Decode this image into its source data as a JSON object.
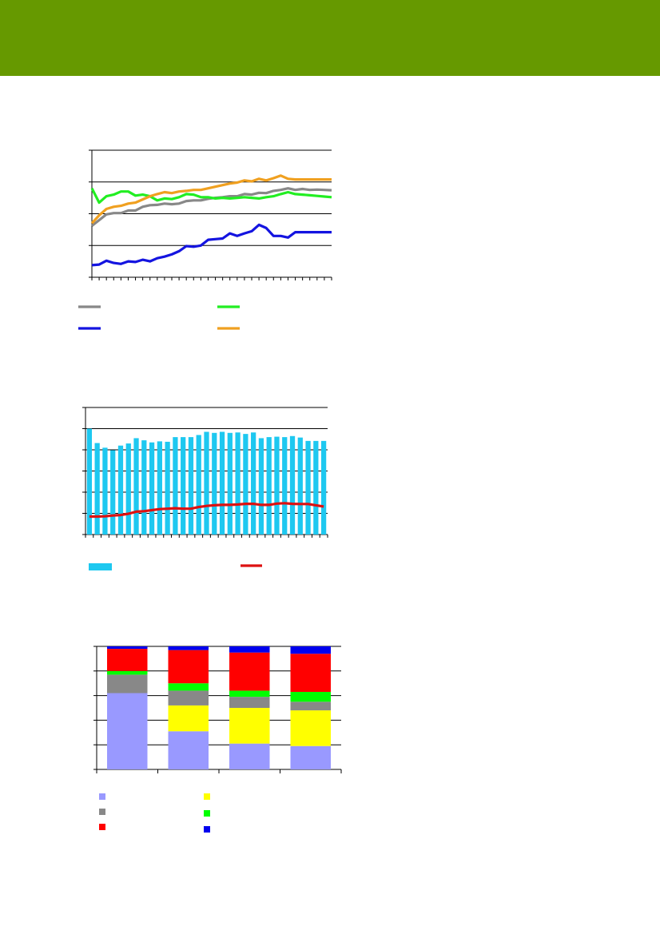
{
  "header": {
    "band_color": "#669900"
  },
  "chart_data": [
    {
      "type": "line",
      "grid": true,
      "legend_position": "bottom",
      "ylim": [
        0,
        4
      ],
      "n_points": 34,
      "series": [
        {
          "color": "#888888",
          "values": [
            1.62,
            1.8,
            1.98,
            2.02,
            2.02,
            2.1,
            2.1,
            2.22,
            2.27,
            2.28,
            2.32,
            2.3,
            2.32,
            2.4,
            2.42,
            2.42,
            2.47,
            2.5,
            2.52,
            2.55,
            2.55,
            2.62,
            2.6,
            2.66,
            2.65,
            2.72,
            2.75,
            2.8,
            2.75,
            2.78,
            2.75,
            2.76,
            2.75,
            2.74
          ]
        },
        {
          "color": "#22ee22",
          "values": [
            2.8,
            2.35,
            2.55,
            2.6,
            2.7,
            2.7,
            2.57,
            2.6,
            2.55,
            2.42,
            2.48,
            2.46,
            2.52,
            2.62,
            2.6,
            2.52,
            2.52,
            2.48,
            2.5,
            2.48,
            2.5,
            2.52,
            2.5,
            2.48,
            2.52,
            2.55,
            2.62,
            2.68,
            2.62,
            2.6,
            2.58,
            2.56,
            2.54,
            2.52
          ]
        },
        {
          "color": "#1414e0",
          "values": [
            0.38,
            0.4,
            0.52,
            0.45,
            0.42,
            0.5,
            0.48,
            0.55,
            0.5,
            0.6,
            0.65,
            0.72,
            0.82,
            0.98,
            0.96,
            1.0,
            1.18,
            1.2,
            1.22,
            1.38,
            1.3,
            1.38,
            1.45,
            1.65,
            1.55,
            1.3,
            1.3,
            1.25,
            1.42,
            1.42,
            1.42,
            1.42,
            1.42,
            1.42
          ]
        },
        {
          "color": "#f0a020",
          "values": [
            1.7,
            1.95,
            2.15,
            2.22,
            2.25,
            2.32,
            2.35,
            2.45,
            2.55,
            2.62,
            2.68,
            2.65,
            2.7,
            2.72,
            2.75,
            2.75,
            2.8,
            2.85,
            2.9,
            2.95,
            2.98,
            3.05,
            3.02,
            3.1,
            3.05,
            3.12,
            3.2,
            3.1,
            3.08,
            3.08,
            3.08,
            3.08,
            3.08,
            3.08
          ]
        }
      ]
    },
    {
      "type": "bar",
      "grid": true,
      "legend_position": "bottom",
      "ylim": [
        0,
        6
      ],
      "n_bars": 31,
      "bar_color": "#1ec8f0",
      "bar_values": [
        5.0,
        4.32,
        4.1,
        3.98,
        4.2,
        4.3,
        4.55,
        4.45,
        4.35,
        4.4,
        4.38,
        4.6,
        4.6,
        4.6,
        4.7,
        4.85,
        4.8,
        4.85,
        4.8,
        4.82,
        4.75,
        4.82,
        4.55,
        4.6,
        4.62,
        4.6,
        4.65,
        4.58,
        4.42,
        4.42,
        4.42
      ],
      "line_color": "#dd1111",
      "line_values": [
        0.85,
        0.85,
        0.86,
        0.9,
        0.92,
        0.98,
        1.08,
        1.1,
        1.15,
        1.2,
        1.22,
        1.24,
        1.22,
        1.22,
        1.3,
        1.35,
        1.38,
        1.4,
        1.4,
        1.42,
        1.45,
        1.45,
        1.4,
        1.4,
        1.46,
        1.48,
        1.45,
        1.44,
        1.44,
        1.38,
        1.32
      ]
    },
    {
      "type": "bar",
      "stacked": true,
      "grid": true,
      "legend_position": "bottom",
      "ylim": [
        0,
        100
      ],
      "n_bars": 4,
      "colors": [
        "#9999ff",
        "#ffff00",
        "#888888",
        "#00ff00",
        "#ff0000",
        "#0000ee"
      ],
      "stacks": [
        [
          62,
          0,
          15,
          3,
          18,
          2
        ],
        [
          31,
          21,
          12,
          6,
          27,
          3
        ],
        [
          21,
          29,
          9,
          5,
          31,
          5
        ],
        [
          19,
          29,
          7,
          8,
          31,
          6
        ]
      ]
    }
  ]
}
